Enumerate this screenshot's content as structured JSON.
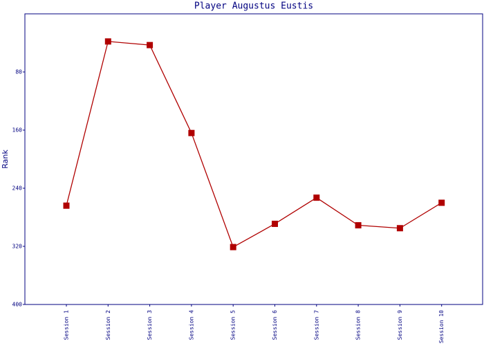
{
  "chart_data": {
    "type": "line",
    "title": "Player Augustus Eustis",
    "y_label": "Rank",
    "categories": [
      "Session 1",
      "Session 2",
      "Session 3",
      "Session 4",
      "Session 5",
      "Session 6",
      "Session 7",
      "Session 8",
      "Session 9",
      "Session 10"
    ],
    "series": [
      {
        "name": "Rank",
        "color": "#b00000",
        "values": [
          264,
          38,
          43,
          164,
          321,
          289,
          253,
          291,
          295,
          260
        ]
      }
    ],
    "ylim": [
      0,
      400
    ],
    "y_inverted": true,
    "yticks": [
      80,
      160,
      240,
      320,
      400
    ],
    "grid": false
  }
}
